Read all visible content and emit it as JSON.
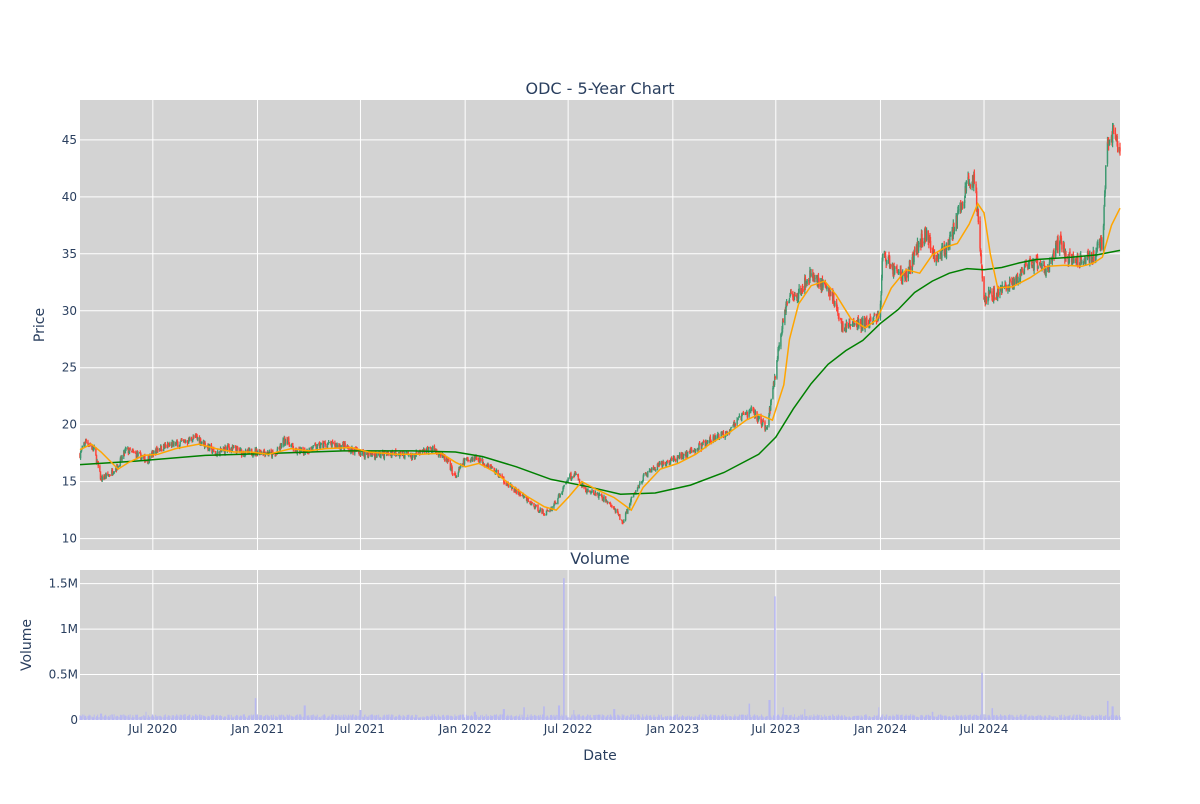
{
  "chart_data": [
    {
      "type": "candlestick",
      "title": "ODC - 5-Year Chart",
      "ylabel": "Price",
      "xlabel": "",
      "ylim": [
        9,
        48.5
      ],
      "xlim": [
        "2020-02-24",
        "2025-02-25"
      ],
      "yticks": [
        10,
        15,
        20,
        25,
        30,
        35,
        40,
        45
      ],
      "grid": true,
      "legend": "none",
      "colors": {
        "up": "#3d9970",
        "down": "#ff4136",
        "ma_short": "#ffa500",
        "ma_long": "#008000",
        "background": "#d3d3d3",
        "grid": "#ffffff"
      },
      "close_anchors": [
        [
          "2020-02-24",
          17.4
        ],
        [
          "2020-03-05",
          18.6
        ],
        [
          "2020-03-20",
          17.8
        ],
        [
          "2020-04-01",
          15.2
        ],
        [
          "2020-04-15",
          15.6
        ],
        [
          "2020-05-01",
          16.4
        ],
        [
          "2020-05-15",
          17.8
        ],
        [
          "2020-06-01",
          17.4
        ],
        [
          "2020-06-20",
          16.9
        ],
        [
          "2020-07-10",
          17.9
        ],
        [
          "2020-08-01",
          18.2
        ],
        [
          "2020-09-01",
          18.6
        ],
        [
          "2020-09-15",
          18.9
        ],
        [
          "2020-10-05",
          18.1
        ],
        [
          "2020-10-20",
          17.4
        ],
        [
          "2020-11-10",
          18.0
        ],
        [
          "2020-12-10",
          17.5
        ],
        [
          "2021-01-10",
          17.7
        ],
        [
          "2021-02-01",
          17.3
        ],
        [
          "2021-02-20",
          18.8
        ],
        [
          "2021-03-10",
          17.6
        ],
        [
          "2021-04-01",
          17.8
        ],
        [
          "2021-05-01",
          18.3
        ],
        [
          "2021-06-01",
          18.1
        ],
        [
          "2021-07-01",
          17.5
        ],
        [
          "2021-08-01",
          17.3
        ],
        [
          "2021-09-01",
          17.6
        ],
        [
          "2021-10-01",
          17.2
        ],
        [
          "2021-11-01",
          17.9
        ],
        [
          "2021-11-15",
          17.6
        ],
        [
          "2021-12-01",
          16.7
        ],
        [
          "2021-12-15",
          15.4
        ],
        [
          "2022-01-01",
          16.9
        ],
        [
          "2022-01-20",
          17.1
        ],
        [
          "2022-02-10",
          16.5
        ],
        [
          "2022-03-01",
          15.6
        ],
        [
          "2022-03-20",
          14.6
        ],
        [
          "2022-04-10",
          13.8
        ],
        [
          "2022-05-01",
          12.9
        ],
        [
          "2022-05-20",
          12.2
        ],
        [
          "2022-06-01",
          12.6
        ],
        [
          "2022-06-20",
          14.1
        ],
        [
          "2022-07-01",
          15.4
        ],
        [
          "2022-07-15",
          15.6
        ],
        [
          "2022-08-01",
          14.2
        ],
        [
          "2022-08-20",
          13.9
        ],
        [
          "2022-09-10",
          13.2
        ],
        [
          "2022-09-25",
          12.2
        ],
        [
          "2022-10-05",
          11.4
        ],
        [
          "2022-10-20",
          13.4
        ],
        [
          "2022-11-10",
          15.4
        ],
        [
          "2022-12-01",
          16.2
        ],
        [
          "2023-01-01",
          16.9
        ],
        [
          "2023-02-01",
          17.6
        ],
        [
          "2023-03-01",
          18.4
        ],
        [
          "2023-04-01",
          19.2
        ],
        [
          "2023-05-01",
          20.6
        ],
        [
          "2023-05-20",
          21.3
        ],
        [
          "2023-06-01",
          20.5
        ],
        [
          "2023-06-15",
          19.6
        ],
        [
          "2023-07-01",
          24.8
        ],
        [
          "2023-07-10",
          28.2
        ],
        [
          "2023-07-25",
          31.3
        ],
        [
          "2023-08-15",
          31.9
        ],
        [
          "2023-09-01",
          33.2
        ],
        [
          "2023-09-20",
          32.4
        ],
        [
          "2023-10-10",
          31.2
        ],
        [
          "2023-10-25",
          28.6
        ],
        [
          "2023-11-15",
          28.8
        ],
        [
          "2023-12-10",
          28.9
        ],
        [
          "2023-12-31",
          29.6
        ],
        [
          "2024-01-05",
          35.1
        ],
        [
          "2024-01-25",
          33.6
        ],
        [
          "2024-02-15",
          33.0
        ],
        [
          "2024-03-01",
          35.1
        ],
        [
          "2024-03-20",
          36.8
        ],
        [
          "2024-04-05",
          34.8
        ],
        [
          "2024-04-25",
          35.3
        ],
        [
          "2024-05-15",
          38.0
        ],
        [
          "2024-06-01",
          41.0
        ],
        [
          "2024-06-15",
          41.6
        ],
        [
          "2024-06-25",
          35.4
        ],
        [
          "2024-07-01",
          31.0
        ],
        [
          "2024-07-15",
          31.4
        ],
        [
          "2024-08-05",
          32.0
        ],
        [
          "2024-08-25",
          32.6
        ],
        [
          "2024-09-15",
          33.8
        ],
        [
          "2024-10-01",
          34.3
        ],
        [
          "2024-10-20",
          33.4
        ],
        [
          "2024-11-10",
          36.2
        ],
        [
          "2024-11-25",
          34.6
        ],
        [
          "2024-12-15",
          34.4
        ],
        [
          "2025-01-10",
          34.9
        ],
        [
          "2025-01-25",
          36.0
        ],
        [
          "2025-02-02",
          44.2
        ],
        [
          "2025-02-12",
          45.6
        ],
        [
          "2025-02-25",
          43.8
        ]
      ],
      "ma_short": [
        [
          "2020-02-24",
          17.8
        ],
        [
          "2020-03-15",
          18.3
        ],
        [
          "2020-04-01",
          17.6
        ],
        [
          "2020-05-01",
          16.1
        ],
        [
          "2020-05-20",
          16.7
        ],
        [
          "2020-06-15",
          17.3
        ],
        [
          "2020-07-10",
          17.4
        ],
        [
          "2020-08-10",
          17.9
        ],
        [
          "2020-09-20",
          18.3
        ],
        [
          "2020-10-20",
          17.9
        ],
        [
          "2020-11-20",
          17.6
        ],
        [
          "2020-12-20",
          17.6
        ],
        [
          "2021-01-20",
          17.4
        ],
        [
          "2021-03-01",
          17.9
        ],
        [
          "2021-04-01",
          17.7
        ],
        [
          "2021-05-01",
          17.9
        ],
        [
          "2021-06-15",
          18.0
        ],
        [
          "2021-07-15",
          17.6
        ],
        [
          "2021-09-01",
          17.4
        ],
        [
          "2021-10-15",
          17.4
        ],
        [
          "2021-11-20",
          17.5
        ],
        [
          "2021-12-15",
          16.7
        ],
        [
          "2022-01-01",
          16.3
        ],
        [
          "2022-01-25",
          16.6
        ],
        [
          "2022-02-20",
          15.9
        ],
        [
          "2022-03-20",
          14.8
        ],
        [
          "2022-04-20",
          13.7
        ],
        [
          "2022-05-20",
          12.8
        ],
        [
          "2022-06-10",
          12.5
        ],
        [
          "2022-07-01",
          13.6
        ],
        [
          "2022-07-25",
          15.0
        ],
        [
          "2022-08-20",
          14.3
        ],
        [
          "2022-09-20",
          13.6
        ],
        [
          "2022-10-20",
          12.5
        ],
        [
          "2022-11-10",
          14.5
        ],
        [
          "2022-12-10",
          16.1
        ],
        [
          "2023-01-10",
          16.6
        ],
        [
          "2023-02-10",
          17.4
        ],
        [
          "2023-03-10",
          18.4
        ],
        [
          "2023-04-10",
          19.3
        ],
        [
          "2023-05-10",
          20.4
        ],
        [
          "2023-06-01",
          20.9
        ],
        [
          "2023-06-25",
          20.4
        ],
        [
          "2023-07-15",
          23.5
        ],
        [
          "2023-07-25",
          27.5
        ],
        [
          "2023-08-10",
          30.6
        ],
        [
          "2023-09-01",
          32.2
        ],
        [
          "2023-09-25",
          32.6
        ],
        [
          "2023-10-15",
          31.4
        ],
        [
          "2023-11-10",
          29.3
        ],
        [
          "2023-12-05",
          28.5
        ],
        [
          "2023-12-25",
          29.2
        ],
        [
          "2024-01-20",
          32.0
        ],
        [
          "2024-02-15",
          33.6
        ],
        [
          "2024-03-10",
          33.3
        ],
        [
          "2024-04-01",
          34.9
        ],
        [
          "2024-04-25",
          35.6
        ],
        [
          "2024-05-15",
          35.9
        ],
        [
          "2024-06-05",
          37.6
        ],
        [
          "2024-06-20",
          39.4
        ],
        [
          "2024-07-01",
          38.6
        ],
        [
          "2024-07-12",
          35.0
        ],
        [
          "2024-07-25",
          32.0
        ],
        [
          "2024-08-20",
          32.1
        ],
        [
          "2024-09-20",
          32.9
        ],
        [
          "2024-10-20",
          33.9
        ],
        [
          "2024-11-20",
          34.0
        ],
        [
          "2024-12-20",
          33.9
        ],
        [
          "2025-01-10",
          34.2
        ],
        [
          "2025-01-25",
          34.7
        ],
        [
          "2025-02-10",
          37.5
        ],
        [
          "2025-02-25",
          39.0
        ]
      ],
      "ma_long": [
        [
          "2020-02-24",
          16.5
        ],
        [
          "2020-06-01",
          16.8
        ],
        [
          "2020-10-01",
          17.3
        ],
        [
          "2021-02-01",
          17.5
        ],
        [
          "2021-06-01",
          17.7
        ],
        [
          "2021-10-01",
          17.7
        ],
        [
          "2021-12-15",
          17.6
        ],
        [
          "2022-02-01",
          17.2
        ],
        [
          "2022-04-01",
          16.3
        ],
        [
          "2022-06-01",
          15.2
        ],
        [
          "2022-08-01",
          14.6
        ],
        [
          "2022-10-01",
          13.9
        ],
        [
          "2022-12-01",
          14.0
        ],
        [
          "2023-02-01",
          14.7
        ],
        [
          "2023-04-01",
          15.8
        ],
        [
          "2023-06-01",
          17.4
        ],
        [
          "2023-07-01",
          18.9
        ],
        [
          "2023-08-01",
          21.4
        ],
        [
          "2023-09-01",
          23.6
        ],
        [
          "2023-10-01",
          25.3
        ],
        [
          "2023-11-01",
          26.5
        ],
        [
          "2023-12-01",
          27.4
        ],
        [
          "2024-01-01",
          28.9
        ],
        [
          "2024-02-01",
          30.1
        ],
        [
          "2024-03-01",
          31.6
        ],
        [
          "2024-04-01",
          32.6
        ],
        [
          "2024-05-01",
          33.3
        ],
        [
          "2024-06-01",
          33.7
        ],
        [
          "2024-07-01",
          33.6
        ],
        [
          "2024-08-01",
          33.8
        ],
        [
          "2024-09-01",
          34.2
        ],
        [
          "2024-10-01",
          34.5
        ],
        [
          "2024-11-01",
          34.6
        ],
        [
          "2024-12-01",
          34.7
        ],
        [
          "2025-01-15",
          34.9
        ],
        [
          "2025-02-25",
          35.3
        ]
      ]
    },
    {
      "type": "bar",
      "title": "Volume",
      "ylabel": "Volume",
      "xlabel": "Date",
      "ylim": [
        0,
        1650000
      ],
      "xlim": [
        "2020-02-24",
        "2025-02-25"
      ],
      "yticks": [
        0,
        500000,
        1000000,
        1500000
      ],
      "ytick_labels": [
        "0",
        "0.5M",
        "1M",
        "1.5M"
      ],
      "xticks": [
        "2020-07-01",
        "2021-01-01",
        "2021-07-01",
        "2022-01-01",
        "2022-07-01",
        "2023-01-01",
        "2023-07-01",
        "2024-01-01",
        "2024-07-01"
      ],
      "xtick_labels": [
        "Jul 2020",
        "Jan 2021",
        "Jul 2021",
        "Jan 2022",
        "Jul 2022",
        "Jan 2023",
        "Jul 2023",
        "Jan 2024",
        "Jul 2024"
      ],
      "grid": true,
      "bar_color": "#b8b8f0",
      "baseline_volume": 45000,
      "spikes": [
        [
          "2020-04-01",
          70000
        ],
        [
          "2020-06-20",
          90000
        ],
        [
          "2020-12-28",
          240000
        ],
        [
          "2021-03-25",
          160000
        ],
        [
          "2021-07-01",
          110000
        ],
        [
          "2022-01-18",
          90000
        ],
        [
          "2022-03-10",
          120000
        ],
        [
          "2022-04-15",
          140000
        ],
        [
          "2022-05-20",
          150000
        ],
        [
          "2022-06-15",
          160000
        ],
        [
          "2022-06-24",
          1560000
        ],
        [
          "2022-07-10",
          110000
        ],
        [
          "2022-09-20",
          120000
        ],
        [
          "2023-05-15",
          180000
        ],
        [
          "2023-06-20",
          220000
        ],
        [
          "2023-06-30",
          1360000
        ],
        [
          "2023-07-15",
          140000
        ],
        [
          "2023-08-20",
          120000
        ],
        [
          "2023-12-30",
          140000
        ],
        [
          "2024-04-01",
          90000
        ],
        [
          "2024-06-28",
          520000
        ],
        [
          "2024-07-15",
          130000
        ],
        [
          "2025-02-03",
          210000
        ],
        [
          "2025-02-12",
          150000
        ]
      ]
    }
  ]
}
